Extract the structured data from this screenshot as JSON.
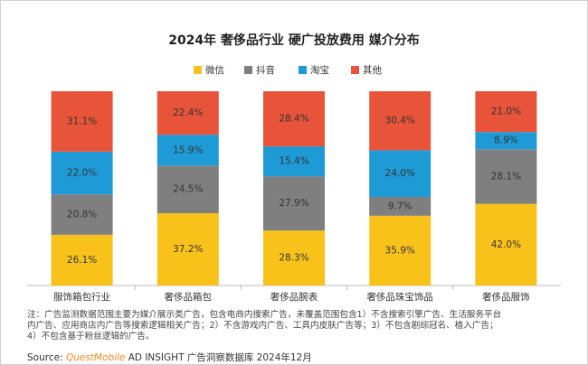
{
  "chart_data": {
    "type": "stacked_bar",
    "title": "2024年 奢侈品行业 硬广投放费用 媒介分布",
    "categories": [
      "服饰箱包行业",
      "奢侈品箱包",
      "奢侈品腕表",
      "奢侈品珠宝饰品",
      "奢侈品服饰"
    ],
    "series": [
      {
        "name": "微信",
        "color": "#F9C21B",
        "values": [
          26.1,
          37.2,
          28.3,
          35.9,
          42.0
        ],
        "value_labels": [
          "26.1%",
          "37.2%",
          "28.3%",
          "35.9%",
          "42.0%"
        ]
      },
      {
        "name": "抖音",
        "color": "#7F7F7F",
        "values": [
          20.8,
          24.5,
          27.9,
          9.7,
          28.1
        ],
        "value_labels": [
          "20.8%",
          "24.5%",
          "27.9%",
          "9.7%",
          "28.1%"
        ]
      },
      {
        "name": "淘宝",
        "color": "#1E9BD7",
        "values": [
          22.0,
          15.9,
          15.4,
          24.0,
          8.9
        ],
        "value_labels": [
          "22.0%",
          "15.9%",
          "15.4%",
          "24.0%",
          "8.9%"
        ]
      },
      {
        "name": "其他",
        "color": "#E8543A",
        "values": [
          31.1,
          22.4,
          28.4,
          30.4,
          21.0
        ],
        "value_labels": [
          "31.1%",
          "22.4%",
          "28.4%",
          "30.4%",
          "21.0%"
        ]
      }
    ],
    "notes": [
      "注：广告监测数据范围主要为媒介展示类广告，包含电商内搜索广告，未覆盖范围包含1）不含搜索引擎广告、生活服务平台",
      "内广告、应用商店内广告等搜索逻辑相关广告；2）不含游戏内广告、工具内皮肤广告等；3）不包含剧综冠名、植入广告；",
      "4）不包含基于粉丝逻辑的广告。"
    ],
    "source": {
      "label": "Source: ",
      "brand": "QuestMobile",
      "text": " AD INSIGHT 广告洞察数据库 2024年12月"
    }
  }
}
